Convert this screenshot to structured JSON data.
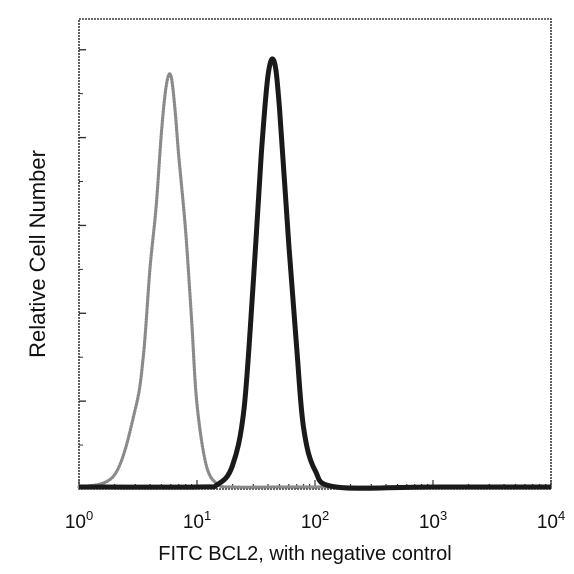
{
  "chart_data": {
    "type": "line",
    "xlabel": "FITC BCL2, with negative control",
    "ylabel": "Relative Cell Number",
    "xscale": "log",
    "xlim": [
      1,
      10000
    ],
    "ylim": [
      0,
      100
    ],
    "grid": false,
    "legend": "none",
    "x_ticks": [
      {
        "base": "10",
        "exp": "0"
      },
      {
        "base": "10",
        "exp": "1"
      },
      {
        "base": "10",
        "exp": "2"
      },
      {
        "base": "10",
        "exp": "3"
      },
      {
        "base": "10",
        "exp": "4"
      }
    ],
    "series": [
      {
        "style": "dotted",
        "color": "#8a8a8a",
        "x": [
          1,
          2,
          3,
          3.5,
          4,
          4.5,
          5,
          5.5,
          6,
          6.5,
          7,
          8,
          9,
          10,
          12,
          15,
          20,
          50,
          100,
          1000,
          10000
        ],
        "y": [
          0,
          3,
          17,
          28,
          47,
          60,
          76,
          86,
          88,
          81,
          71,
          55,
          36,
          18,
          5,
          1,
          0,
          0,
          0,
          0,
          0
        ]
      },
      {
        "style": "solid",
        "color": "#1a1a1a",
        "x": [
          1,
          10,
          15,
          20,
          25,
          30,
          35,
          40,
          45,
          50,
          60,
          70,
          80,
          100,
          150,
          1000,
          10000
        ],
        "y": [
          0,
          0,
          1,
          5,
          17,
          44,
          71,
          88,
          91,
          81,
          52,
          30,
          13,
          4,
          0,
          0,
          0
        ]
      }
    ]
  }
}
